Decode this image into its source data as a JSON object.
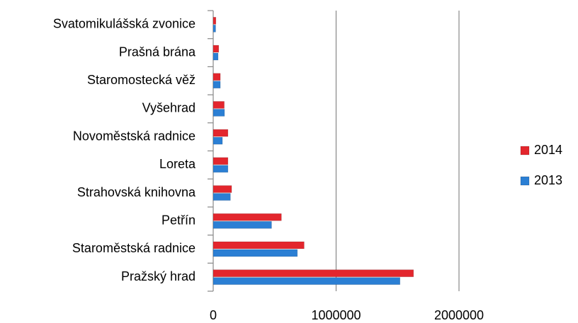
{
  "chart_data": {
    "type": "bar",
    "orientation": "horizontal",
    "categories": [
      "Svatomikulášská zvonice",
      "Prašná brána",
      "Staromostecká věž",
      "Vyšehrad",
      "Novoměstská radnice",
      "Loreta",
      "Strahovská knihovna",
      "Petřín",
      "Staroměstská radnice",
      "Pražský hrad"
    ],
    "series": [
      {
        "name": "2014",
        "color": "#e3262d",
        "values": [
          22000,
          45000,
          58000,
          90000,
          120000,
          120000,
          150000,
          555000,
          740000,
          1630000
        ]
      },
      {
        "name": "2013",
        "color": "#2b7fd4",
        "values": [
          20000,
          40000,
          58000,
          92000,
          75000,
          120000,
          140000,
          475000,
          685000,
          1520000
        ]
      }
    ],
    "xlim": [
      0,
      2000000
    ],
    "xticks": [
      0,
      1000000,
      2000000
    ],
    "grid": true,
    "legend": "right"
  }
}
